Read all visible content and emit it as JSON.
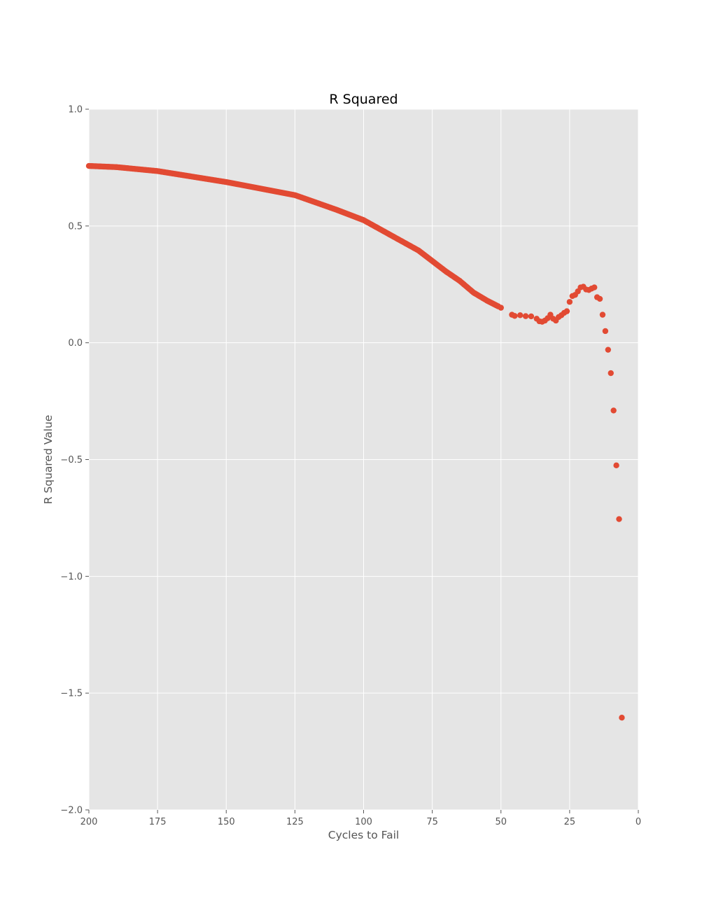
{
  "chart_data": {
    "type": "scatter",
    "title": "R Squared",
    "xlabel": "Cycles to Fail",
    "ylabel": "R Squared Value",
    "xlim": [
      200,
      0
    ],
    "ylim": [
      -2.0,
      1.0
    ],
    "x_ticks": [
      200,
      175,
      150,
      125,
      100,
      75,
      50,
      25,
      0
    ],
    "x_tick_labels": [
      "200",
      "175",
      "150",
      "125",
      "100",
      "75",
      "50",
      "25",
      "0"
    ],
    "y_ticks": [
      1.0,
      0.5,
      0.0,
      -0.5,
      -1.0,
      -1.5,
      -2.0
    ],
    "y_tick_labels": [
      "1.0",
      "0.5",
      "0.0",
      "−0.5",
      "−1.0",
      "−1.5",
      "−2.0"
    ],
    "grid": true,
    "colors": {
      "marker": "#e24a33",
      "plot_background": "#e5e5e5",
      "grid": "#ffffff",
      "tick": "#555555",
      "text": "#555555"
    },
    "key_points": [
      [
        200,
        0.757
      ],
      [
        190,
        0.752
      ],
      [
        175,
        0.735
      ],
      [
        150,
        0.688
      ],
      [
        125,
        0.632
      ],
      [
        110,
        0.57
      ],
      [
        100,
        0.525
      ],
      [
        90,
        0.46
      ],
      [
        80,
        0.395
      ],
      [
        75,
        0.35
      ],
      [
        70,
        0.305
      ],
      [
        65,
        0.265
      ],
      [
        60,
        0.215
      ],
      [
        55,
        0.18
      ],
      [
        50,
        0.15
      ],
      [
        46,
        0.12
      ],
      [
        45,
        0.115
      ],
      [
        43,
        0.118
      ],
      [
        41,
        0.114
      ],
      [
        39,
        0.113
      ],
      [
        37,
        0.103
      ],
      [
        36,
        0.092
      ],
      [
        35,
        0.09
      ],
      [
        34,
        0.095
      ],
      [
        33,
        0.105
      ],
      [
        32,
        0.12
      ],
      [
        31,
        0.103
      ],
      [
        30,
        0.095
      ],
      [
        29,
        0.11
      ],
      [
        28,
        0.118
      ],
      [
        27,
        0.128
      ],
      [
        26,
        0.135
      ],
      [
        25,
        0.175
      ],
      [
        24,
        0.2
      ],
      [
        23,
        0.205
      ],
      [
        22,
        0.22
      ],
      [
        21,
        0.237
      ],
      [
        20,
        0.24
      ],
      [
        19,
        0.228
      ],
      [
        18,
        0.226
      ],
      [
        17,
        0.232
      ],
      [
        16,
        0.237
      ],
      [
        15,
        0.195
      ],
      [
        14,
        0.188
      ],
      [
        13,
        0.12
      ],
      [
        12,
        0.05
      ],
      [
        11,
        -0.03
      ],
      [
        10,
        -0.13
      ],
      [
        9,
        -0.29
      ],
      [
        8,
        -0.525
      ],
      [
        7,
        -0.755
      ],
      [
        6,
        -1.605
      ]
    ]
  }
}
